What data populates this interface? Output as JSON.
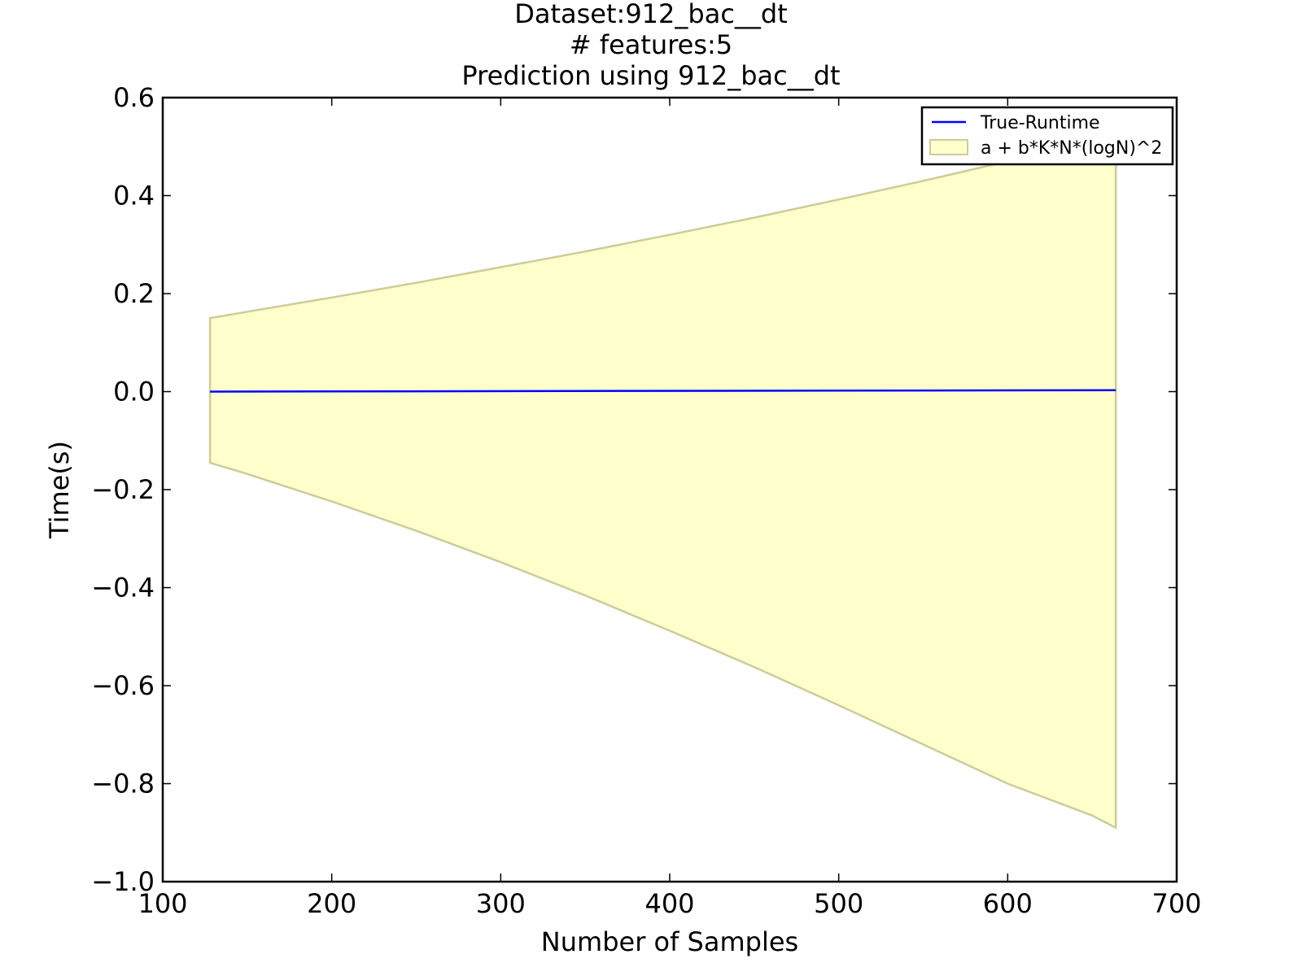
{
  "chart_data": {
    "type": "area",
    "title_lines": [
      "Dataset:912_bac__dt",
      "# features:5",
      "Prediction using 912_bac__dt"
    ],
    "xlabel": "Number of Samples",
    "ylabel": "Time(s)",
    "xlim": [
      100,
      700
    ],
    "ylim": [
      -1.0,
      0.6
    ],
    "xticks": [
      100,
      200,
      300,
      400,
      500,
      600,
      700
    ],
    "xtick_labels": [
      "100",
      "200",
      "300",
      "400",
      "500",
      "600",
      "700"
    ],
    "yticks": [
      -1.0,
      -0.8,
      -0.6,
      -0.4,
      -0.2,
      0.0,
      0.2,
      0.4,
      0.6
    ],
    "ytick_labels": [
      "−1.0",
      "−0.8",
      "−0.6",
      "−0.4",
      "−0.2",
      "0.0",
      "0.2",
      "0.4",
      "0.6"
    ],
    "grid": false,
    "legend_placement": "upper right",
    "series": [
      {
        "name": "True-Runtime",
        "kind": "line",
        "color": "#0000ff",
        "x": [
          128,
          664
        ],
        "y": [
          0.0,
          0.003
        ]
      },
      {
        "name": "a + b*K*N*(logN)^2",
        "kind": "band",
        "fill": "#ffffcc",
        "edge": "#cccc99",
        "x": [
          128,
          150,
          200,
          250,
          300,
          350,
          400,
          450,
          500,
          550,
          600,
          650,
          664
        ],
        "upper": [
          0.15,
          0.163,
          0.192,
          0.222,
          0.254,
          0.286,
          0.32,
          0.355,
          0.392,
          0.43,
          0.47,
          0.51,
          0.52
        ],
        "lower": [
          -0.145,
          -0.168,
          -0.224,
          -0.284,
          -0.348,
          -0.416,
          -0.488,
          -0.562,
          -0.64,
          -0.72,
          -0.8,
          -0.865,
          -0.89
        ]
      }
    ]
  }
}
